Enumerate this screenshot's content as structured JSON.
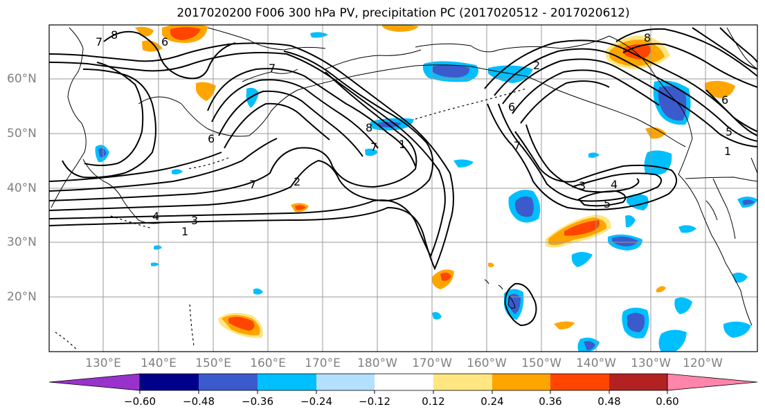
{
  "title": "2017020200 F006 300 hPa PV, precipitation PC (2017020512 - 2017020612)",
  "lat_labels": [
    "60°N",
    "50°N",
    "40°N",
    "30°N",
    "20°N"
  ],
  "lon_labels": [
    "130°E",
    "140°E",
    "150°E",
    "160°E",
    "170°E",
    "180°W",
    "170°W",
    "160°W",
    "150°W",
    "140°W",
    "130°W",
    "120°W"
  ],
  "colorbar": {
    "ticks": [
      "−0.60",
      "−0.48",
      "−0.36",
      "−0.24",
      "−0.12",
      "0.12",
      "0.24",
      "0.36",
      "0.48",
      "0.60"
    ],
    "colors": [
      "#9932CC",
      "#00008B",
      "#3B5BCC",
      "#00BFFF",
      "#B3E0FF",
      "#FFFFFF",
      "#FFE680",
      "#FFA500",
      "#FF4500",
      "#B22222",
      "#FF85AA"
    ]
  },
  "contour_labels": [
    "7",
    "8",
    "6",
    "6",
    "7",
    "1",
    "2",
    "3",
    "4",
    "8",
    "7",
    "2",
    "6",
    "7",
    "3",
    "4",
    "5",
    "1",
    "5",
    "6",
    "8",
    "1",
    "7"
  ]
}
